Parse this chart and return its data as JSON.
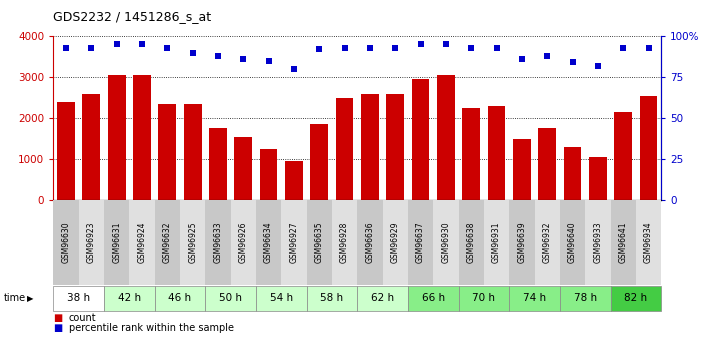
{
  "title": "GDS2232 / 1451286_s_at",
  "samples": [
    "GSM96630",
    "GSM96923",
    "GSM96631",
    "GSM96924",
    "GSM96632",
    "GSM96925",
    "GSM96633",
    "GSM96926",
    "GSM96634",
    "GSM96927",
    "GSM96635",
    "GSM96928",
    "GSM96636",
    "GSM96929",
    "GSM96637",
    "GSM96930",
    "GSM96638",
    "GSM96931",
    "GSM96639",
    "GSM96932",
    "GSM96640",
    "GSM96933",
    "GSM96641",
    "GSM96934"
  ],
  "counts": [
    2400,
    2600,
    3050,
    3050,
    2350,
    2350,
    1750,
    1550,
    1250,
    950,
    1850,
    2500,
    2600,
    2600,
    2950,
    3050,
    2250,
    2300,
    1500,
    1750,
    1300,
    1050,
    2150,
    2550
  ],
  "percentiles": [
    93,
    93,
    95,
    95,
    93,
    90,
    88,
    86,
    85,
    80,
    92,
    93,
    93,
    93,
    95,
    95,
    93,
    93,
    86,
    88,
    84,
    82,
    93,
    93
  ],
  "time_groups": [
    {
      "label": "38 h",
      "cols": [
        0,
        1
      ],
      "color": "#ffffff"
    },
    {
      "label": "42 h",
      "cols": [
        2,
        3
      ],
      "color": "#ccffcc"
    },
    {
      "label": "46 h",
      "cols": [
        4,
        5
      ],
      "color": "#ccffcc"
    },
    {
      "label": "50 h",
      "cols": [
        6,
        7
      ],
      "color": "#ccffcc"
    },
    {
      "label": "54 h",
      "cols": [
        8,
        9
      ],
      "color": "#ccffcc"
    },
    {
      "label": "58 h",
      "cols": [
        10,
        11
      ],
      "color": "#ccffcc"
    },
    {
      "label": "62 h",
      "cols": [
        12,
        13
      ],
      "color": "#ccffcc"
    },
    {
      "label": "66 h",
      "cols": [
        14,
        15
      ],
      "color": "#88ee88"
    },
    {
      "label": "70 h",
      "cols": [
        16,
        17
      ],
      "color": "#88ee88"
    },
    {
      "label": "74 h",
      "cols": [
        18,
        19
      ],
      "color": "#88ee88"
    },
    {
      "label": "78 h",
      "cols": [
        20,
        21
      ],
      "color": "#88ee88"
    },
    {
      "label": "82 h",
      "cols": [
        22,
        23
      ],
      "color": "#44cc44"
    }
  ],
  "bar_color": "#cc0000",
  "dot_color": "#0000cc",
  "ylim_left": [
    0,
    4000
  ],
  "ylim_right": [
    0,
    100
  ],
  "yticks_left": [
    0,
    1000,
    2000,
    3000,
    4000
  ],
  "yticks_right": [
    0,
    25,
    50,
    75,
    100
  ],
  "yticklabels_right": [
    "0",
    "25",
    "50",
    "75",
    "100%"
  ]
}
